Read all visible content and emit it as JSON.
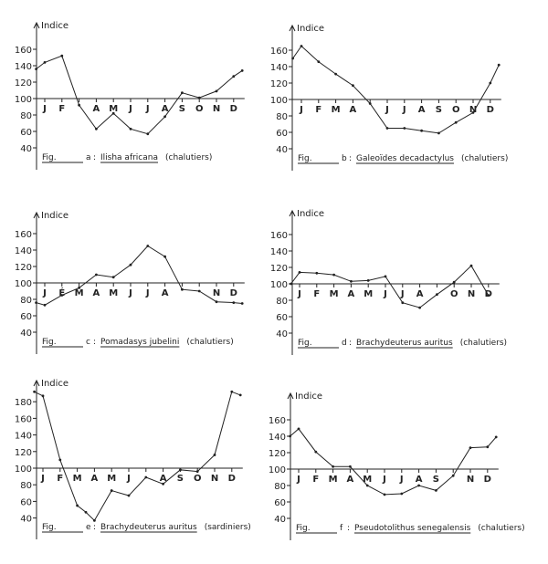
{
  "chart_data": [
    {
      "type": "line",
      "panel": "a",
      "fig_label": "Fig.",
      "letter": "a",
      "species": "Ilisha africana",
      "gear": "(chalutiers)",
      "ylabel": "Indice",
      "yticks": [
        40,
        60,
        80,
        100,
        120,
        140,
        160
      ],
      "month_labels": [
        "J",
        "F",
        "",
        "A",
        "M",
        "J",
        "J",
        "A",
        "S",
        "O",
        "N",
        "D"
      ],
      "x": [
        0.5,
        1,
        2,
        3,
        4,
        5,
        6,
        7,
        8,
        9,
        10,
        11,
        12,
        12.5
      ],
      "values": [
        136,
        144,
        152,
        92,
        63,
        82,
        63,
        57,
        78,
        107,
        101,
        109,
        127,
        134
      ]
    },
    {
      "type": "line",
      "panel": "b",
      "fig_label": "Fig.",
      "letter": "b",
      "species": "Galeoïdes decadactylus",
      "gear": "(chalutiers)",
      "ylabel": "Indice",
      "yticks": [
        40,
        60,
        80,
        100,
        120,
        140,
        160
      ],
      "month_labels": [
        "J",
        "F",
        "M",
        "A",
        "",
        "J",
        "J",
        "A",
        "S",
        "O",
        "N",
        "D"
      ],
      "x": [
        0.5,
        1,
        2,
        3,
        4,
        5,
        6,
        7,
        8,
        9,
        10,
        11,
        12,
        12.5
      ],
      "values": [
        150,
        165,
        146,
        131,
        117,
        95,
        65,
        65,
        62,
        59,
        72,
        84,
        120,
        142
      ]
    },
    {
      "type": "line",
      "panel": "c",
      "fig_label": "Fig.",
      "letter": "c",
      "species": "Pomadasys jubelini",
      "gear": "(chalutiers)",
      "ylabel": "Indice",
      "yticks": [
        40,
        60,
        80,
        100,
        120,
        140,
        160
      ],
      "month_labels": [
        "J",
        "É",
        "M",
        "A",
        "M",
        "J",
        "J",
        "A",
        "",
        "",
        "N",
        "D"
      ],
      "x": [
        0.5,
        1,
        2,
        3,
        4,
        5,
        6,
        7,
        8,
        9,
        10,
        11,
        12,
        12.5
      ],
      "values": [
        76,
        73,
        85,
        94,
        110,
        107,
        122,
        145,
        132,
        92,
        90,
        77,
        76,
        75
      ]
    },
    {
      "type": "line",
      "panel": "d",
      "fig_label": "Fig.",
      "letter": "d",
      "species": "Brachydeuterus auritus",
      "gear": "(chalutiers)",
      "ylabel": "Indice",
      "yticks": [
        40,
        60,
        80,
        100,
        120,
        140,
        160
      ],
      "month_labels": [
        "J",
        "F",
        "M",
        "A",
        "M",
        "J",
        "J",
        "A",
        "",
        "O",
        "N",
        "D"
      ],
      "x": [
        0.5,
        1,
        2,
        3,
        4,
        5,
        6,
        7,
        8,
        9,
        10,
        11,
        12
      ],
      "values": [
        100,
        114,
        113,
        111,
        103,
        104,
        109,
        77,
        71,
        87,
        102,
        122,
        86
      ]
    },
    {
      "type": "line",
      "panel": "e",
      "fig_label": "Fig.",
      "letter": "e",
      "species": "Brachydeuterus auritus",
      "gear": "(sardiniers)",
      "ylabel": "Indice",
      "yticks": [
        40,
        60,
        80,
        100,
        120,
        140,
        160,
        180
      ],
      "month_labels": [
        "J",
        "F",
        "M",
        "A",
        "M",
        "J",
        "",
        "A",
        "S",
        "O",
        "N",
        "D"
      ],
      "x": [
        0.5,
        1,
        2,
        3,
        3.5,
        4,
        5,
        6,
        7,
        8,
        9,
        10,
        11,
        12,
        12.5
      ],
      "values": [
        192,
        187,
        110,
        55,
        47,
        37,
        73,
        67,
        89,
        81,
        98,
        96,
        116,
        192,
        188
      ]
    },
    {
      "type": "line",
      "panel": "f",
      "fig_label": "Fig.",
      "letter": "f",
      "species": "Pseudotolithus senegalensis",
      "gear": "(chalutiers)",
      "ylabel": "Indice",
      "yticks": [
        40,
        60,
        80,
        100,
        120,
        140,
        160
      ],
      "month_labels": [
        "J",
        "F",
        "M",
        "A",
        "M",
        "J",
        "J",
        "A",
        "S",
        "",
        "N",
        "D"
      ],
      "x": [
        0.5,
        1,
        2,
        3,
        4,
        5,
        6,
        7,
        8,
        9,
        10,
        11,
        12,
        12.5
      ],
      "values": [
        140,
        149,
        121,
        103,
        103,
        80,
        69,
        70,
        80,
        74,
        92,
        126,
        127,
        139
      ]
    }
  ]
}
